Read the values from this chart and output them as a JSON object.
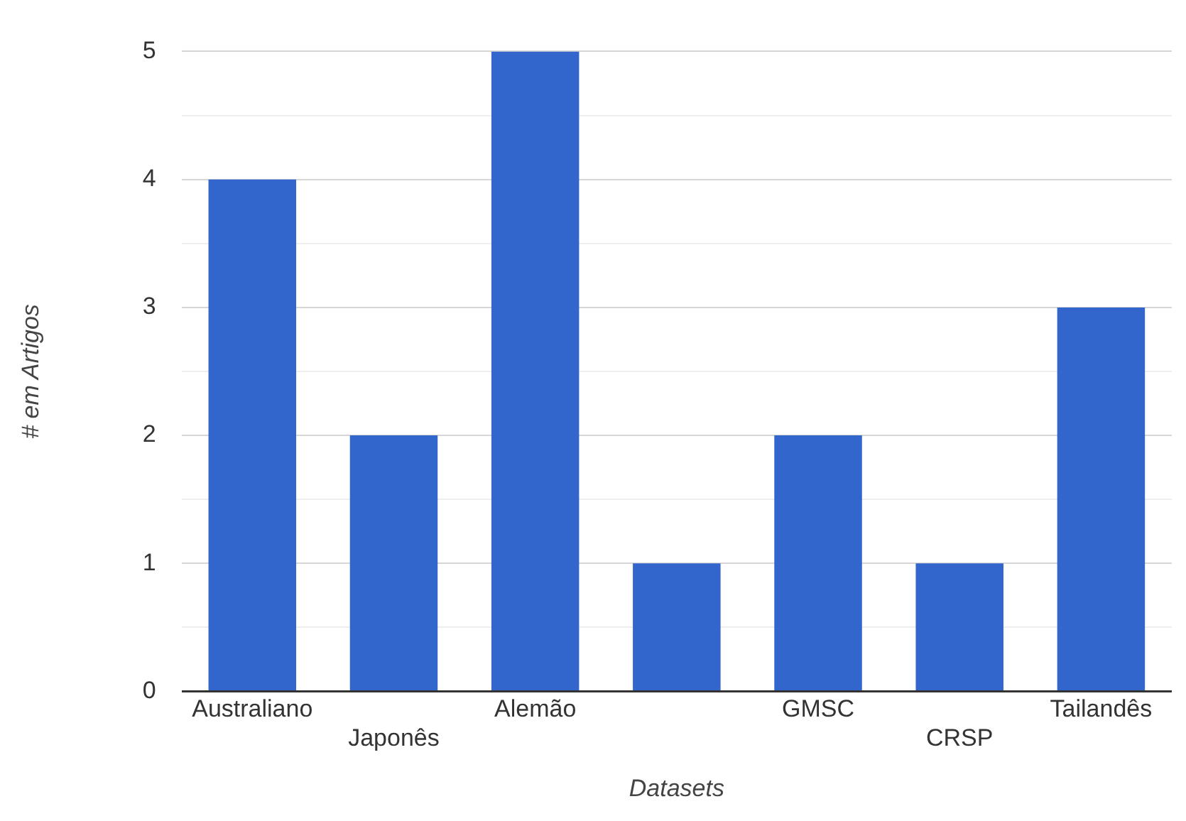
{
  "chart_data": {
    "type": "bar",
    "xlabel": "Datasets",
    "ylabel": "# em Artigos",
    "categories": [
      "Australiano",
      "Japonês",
      "Alemão",
      null,
      "GMSC",
      "CRSP",
      "Tailandês"
    ],
    "values": [
      4,
      2,
      5,
      1,
      2,
      1,
      3
    ],
    "color": "#3366cc",
    "ylim": [
      0,
      5
    ],
    "yticks": [
      0,
      {
        "value": 0.5,
        "label": null
      },
      1,
      {
        "value": 1.5,
        "label": null
      },
      2,
      {
        "value": 2.5,
        "label": null
      },
      3,
      {
        "value": 3.5,
        "label": null
      },
      4,
      {
        "value": 4.5,
        "label": null
      },
      5
    ],
    "grid": "y",
    "legend": false
  }
}
